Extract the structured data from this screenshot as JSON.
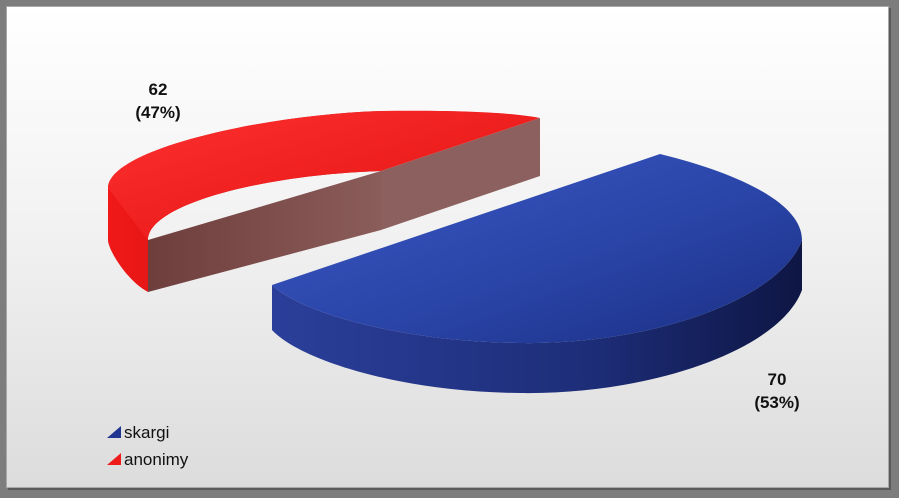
{
  "chart_data": {
    "type": "pie",
    "title": "",
    "slices": [
      {
        "name": "skargi",
        "value": 70,
        "label_value": "70",
        "label_percent": "(53%)",
        "color": "#1f3590"
      },
      {
        "name": "anonimy",
        "value": 62,
        "label_value": "62",
        "label_percent": "(47%)",
        "color": "#ee1b1b"
      }
    ],
    "legend": {
      "placement": "bottom-left",
      "items": [
        "skargi",
        "anonimy"
      ]
    },
    "style": "3d-exploded"
  }
}
